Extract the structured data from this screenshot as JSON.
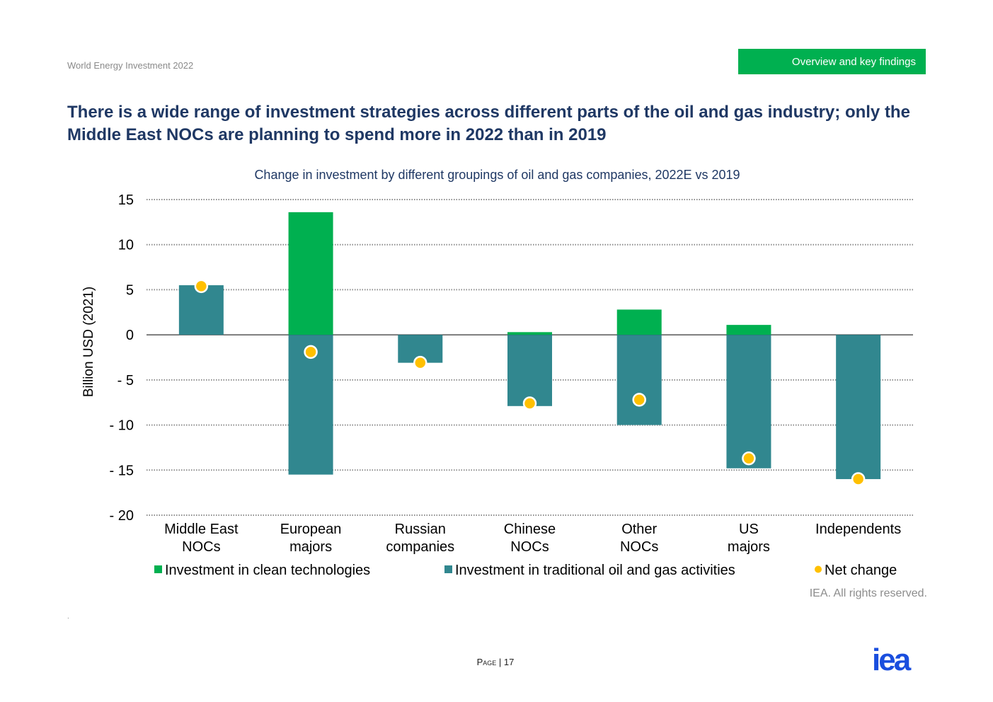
{
  "header": {
    "report_name": "World Energy Investment 2022",
    "section_label": "Overview and key findings"
  },
  "page_title": "There is a wide range of investment strategies across different parts of the oil and gas industry; only the Middle East NOCs are planning to spend more in 2022 than in 2019",
  "chart_title": "Change in investment by different groupings of oil and gas companies, 2022E vs 2019",
  "chart_data": {
    "type": "bar",
    "stacked": true,
    "title": "Change in investment by different groupings of oil and gas companies, 2022E vs 2019",
    "ylabel": "Billion USD (2021)",
    "xlabel": "",
    "ylim": [
      -20,
      15
    ],
    "yticks": [
      15,
      10,
      5,
      0,
      -5,
      -10,
      -15,
      -20
    ],
    "ytick_labels": [
      "15",
      "10",
      "5",
      "0",
      "- 5",
      "- 10",
      "- 15",
      "- 20"
    ],
    "grid": true,
    "categories": [
      [
        "Middle East",
        "NOCs"
      ],
      [
        "European",
        "majors"
      ],
      [
        "Russian",
        "companies"
      ],
      [
        "Chinese",
        "NOCs"
      ],
      [
        "Other",
        "NOCs"
      ],
      [
        "US",
        "majors"
      ],
      [
        "Independents"
      ]
    ],
    "series": [
      {
        "name": "Investment in clean technologies",
        "kind": "bar",
        "color": "#00b050",
        "values": [
          0,
          13.6,
          0,
          0.3,
          2.8,
          1.1,
          0
        ]
      },
      {
        "name": "Investment in traditional oil and gas activities",
        "kind": "bar",
        "color": "#31878f",
        "values": [
          5.5,
          -15.5,
          -3.1,
          -7.9,
          -10.0,
          -14.8,
          -16.0
        ]
      },
      {
        "name": "Net change",
        "kind": "point",
        "color": "#ffc000",
        "values": [
          5.4,
          -1.9,
          -3.1,
          -7.6,
          -7.2,
          -13.7,
          -16.0
        ]
      }
    ],
    "legend_position": "bottom"
  },
  "copyright": "IEA. All rights reserved.",
  "footer": {
    "page_label": "Page",
    "page_number": "17",
    "logo_text": "iea",
    "dot": "."
  }
}
